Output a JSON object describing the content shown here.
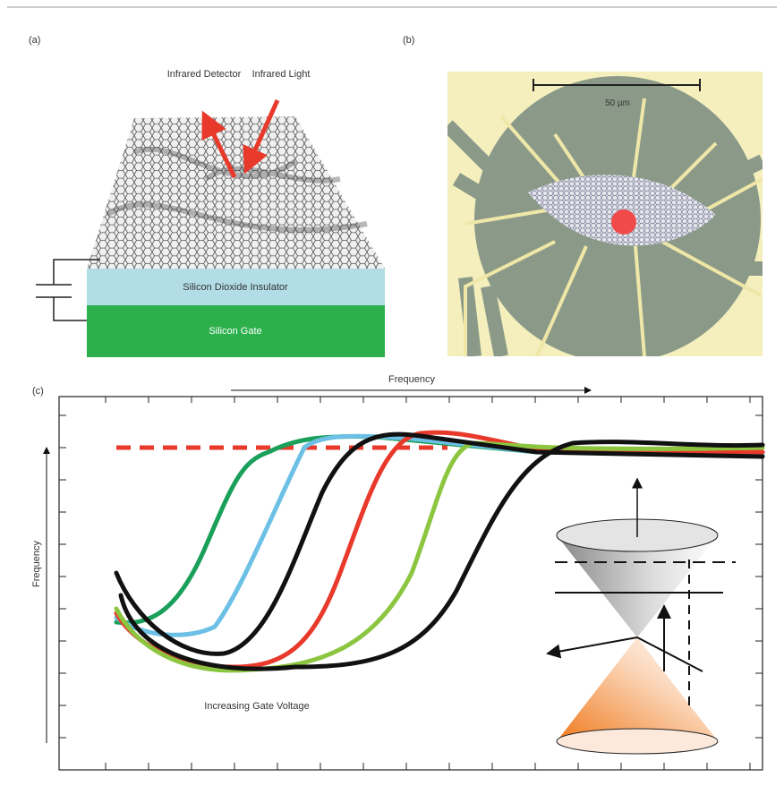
{
  "panel_a": {
    "label": "(a)",
    "detector_label": "Infrared Detector",
    "light_label": "Infrared Light",
    "insulator_label": "Silicon Dioxide Insulator",
    "gate_label": "Silicon Gate"
  },
  "panel_b": {
    "label": "(b)",
    "scale_bar": "50 µm"
  },
  "panel_c": {
    "label": "(c)",
    "x_axis_label": "Frequency",
    "y_axis_label": "Frequency",
    "annotation": "Increasing Gate Voltage"
  }
}
